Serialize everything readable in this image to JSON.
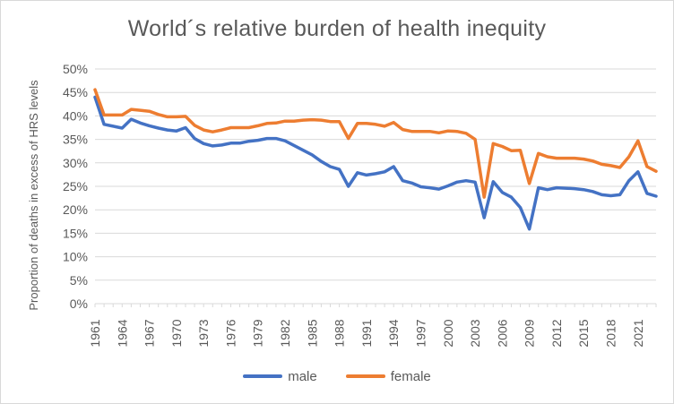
{
  "title": "World´s relative burden of health inequity",
  "colors": {
    "male": "#4472c4",
    "female": "#ed7d31",
    "grid": "#d9d9d9",
    "text": "#595959"
  },
  "chart_data": {
    "type": "line",
    "title": "World´s relative burden of health inequity",
    "xlabel": "",
    "ylabel": "Proportion of deaths in excess of HRS levels",
    "x": [
      1961,
      1962,
      1963,
      1964,
      1965,
      1966,
      1967,
      1968,
      1969,
      1970,
      1971,
      1972,
      1973,
      1974,
      1975,
      1976,
      1977,
      1978,
      1979,
      1980,
      1981,
      1982,
      1983,
      1984,
      1985,
      1986,
      1987,
      1988,
      1989,
      1990,
      1991,
      1992,
      1993,
      1994,
      1995,
      1996,
      1997,
      1998,
      1999,
      2000,
      2001,
      2002,
      2003,
      2004,
      2005,
      2006,
      2007,
      2008,
      2009,
      2010,
      2011,
      2012,
      2013,
      2014,
      2015,
      2016,
      2017,
      2018,
      2019,
      2020,
      2021,
      2022,
      2023
    ],
    "xticks": [
      "1961",
      "1964",
      "1967",
      "1970",
      "1973",
      "1976",
      "1979",
      "1982",
      "1985",
      "1988",
      "1991",
      "1994",
      "1997",
      "2000",
      "2003",
      "2006",
      "2009",
      "2012",
      "2015",
      "2018",
      "2021"
    ],
    "yticks": [
      "0%",
      "5%",
      "10%",
      "15%",
      "20%",
      "25%",
      "30%",
      "35%",
      "40%",
      "45%",
      "50%"
    ],
    "ylim": [
      0,
      50
    ],
    "grid": true,
    "legend_position": "bottom",
    "series": [
      {
        "name": "male",
        "color": "#4472c4",
        "values": [
          44.0,
          38.2,
          37.8,
          37.4,
          39.3,
          38.5,
          37.9,
          37.4,
          37.0,
          36.8,
          37.5,
          35.2,
          34.1,
          33.6,
          33.8,
          34.2,
          34.2,
          34.6,
          34.8,
          35.2,
          35.2,
          34.7,
          33.7,
          32.7,
          31.7,
          30.3,
          29.2,
          28.6,
          25.0,
          27.9,
          27.4,
          27.7,
          28.1,
          29.2,
          26.2,
          25.7,
          24.9,
          24.7,
          24.4,
          25.1,
          25.9,
          26.2,
          25.9,
          18.3,
          26.0,
          23.7,
          22.7,
          20.5,
          15.9,
          24.7,
          24.3,
          24.7,
          24.6,
          24.5,
          24.3,
          23.9,
          23.2,
          23.0,
          23.2,
          26.2,
          28.1,
          23.5,
          22.9
        ]
      },
      {
        "name": "female",
        "color": "#ed7d31",
        "values": [
          45.6,
          40.2,
          40.2,
          40.2,
          41.4,
          41.2,
          41.0,
          40.3,
          39.8,
          39.8,
          39.9,
          38.0,
          37.0,
          36.6,
          37.0,
          37.5,
          37.5,
          37.5,
          37.9,
          38.4,
          38.5,
          38.9,
          38.9,
          39.1,
          39.2,
          39.1,
          38.8,
          38.8,
          35.2,
          38.4,
          38.4,
          38.2,
          37.8,
          38.6,
          37.1,
          36.7,
          36.7,
          36.7,
          36.4,
          36.8,
          36.7,
          36.3,
          35.0,
          22.7,
          34.1,
          33.5,
          32.6,
          32.7,
          25.6,
          32.0,
          31.3,
          31.0,
          31.0,
          31.0,
          30.8,
          30.4,
          29.7,
          29.4,
          29.0,
          31.3,
          34.7,
          29.2,
          28.2
        ]
      }
    ]
  }
}
